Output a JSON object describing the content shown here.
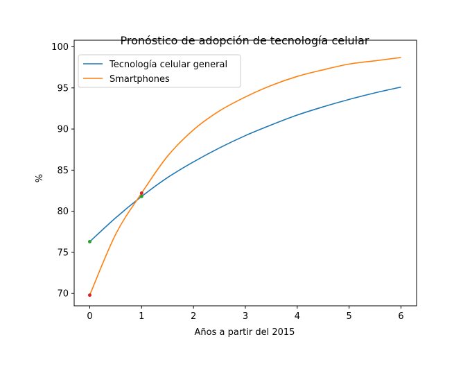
{
  "chart_data": {
    "type": "line",
    "title": "Pronóstico de adopción de tecnología celular",
    "xlabel": "Años a partir del 2015",
    "ylabel": "%",
    "xlim": [
      -0.3,
      6.3
    ],
    "ylim": [
      68.5,
      100.8
    ],
    "xticks": [
      0,
      1,
      2,
      3,
      4,
      5,
      6
    ],
    "yticks": [
      70,
      75,
      80,
      85,
      90,
      95,
      100
    ],
    "grid": false,
    "legend_position": "upper left",
    "series": [
      {
        "name": "Tecnología celular general",
        "color": "#1f77b4",
        "x": [
          0,
          0.5,
          1,
          1.5,
          2,
          2.5,
          3,
          3.5,
          4,
          4.5,
          5,
          5.5,
          6
        ],
        "y": [
          76.3,
          79.2,
          81.8,
          84.1,
          86.0,
          87.7,
          89.2,
          90.5,
          91.7,
          92.7,
          93.6,
          94.4,
          95.1
        ]
      },
      {
        "name": "Smartphones",
        "color": "#ff7f0e",
        "x": [
          0,
          0.5,
          1,
          1.5,
          2,
          2.5,
          3,
          3.5,
          4,
          4.5,
          5,
          5.5,
          6
        ],
        "y": [
          69.8,
          77.2,
          82.2,
          86.7,
          89.9,
          92.2,
          93.9,
          95.3,
          96.4,
          97.2,
          97.9,
          98.3,
          98.7
        ]
      }
    ],
    "markers": [
      {
        "x": 0,
        "y": 76.3,
        "color": "#2ca02c"
      },
      {
        "x": 1,
        "y": 81.8,
        "color": "#2ca02c"
      },
      {
        "x": 0,
        "y": 69.8,
        "color": "#d62728"
      },
      {
        "x": 1,
        "y": 82.2,
        "color": "#d62728"
      }
    ]
  }
}
